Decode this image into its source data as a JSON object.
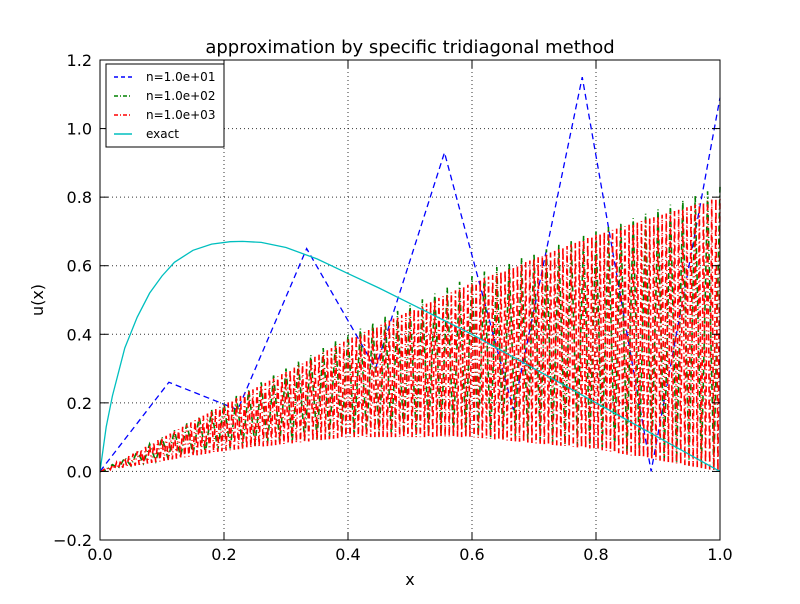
{
  "chart_data": {
    "type": "line",
    "title": "approximation by specific tridiagonal method",
    "xlabel": "x",
    "ylabel": "u(x)",
    "xlim": [
      0.0,
      1.0
    ],
    "ylim": [
      -0.2,
      1.2
    ],
    "xticks": [
      "0.0",
      "0.2",
      "0.4",
      "0.6",
      "0.8",
      "1.0"
    ],
    "yticks": [
      "−0.2",
      "0.0",
      "0.2",
      "0.4",
      "0.6",
      "0.8",
      "1.0",
      "1.2"
    ],
    "xtick_values": [
      0.0,
      0.2,
      0.4,
      0.6,
      0.8,
      1.0
    ],
    "ytick_values": [
      -0.2,
      0.0,
      0.2,
      0.4,
      0.6,
      0.8,
      1.0,
      1.2
    ],
    "grid": true,
    "legend_position": "top-left",
    "series": [
      {
        "name": "n=1.0e+01",
        "color": "#0000ff",
        "style": "dashed",
        "x": [
          0.0,
          0.1111,
          0.2222,
          0.3333,
          0.4444,
          0.5556,
          0.6667,
          0.7778,
          0.8889,
          1.0
        ],
        "y": [
          0.0,
          0.26,
          0.18,
          0.65,
          0.3,
          0.93,
          0.18,
          1.15,
          0.0,
          1.09
        ]
      },
      {
        "name": "n=1.0e+02",
        "color": "#008000",
        "style": "dash-dot",
        "x_start": 0.0,
        "x_end": 1.0,
        "upper": [
          0.0,
          0.2,
          0.4,
          0.57,
          0.7,
          0.83
        ],
        "lower": [
          0.0,
          0.065,
          0.105,
          0.105,
          0.07,
          0.0
        ]
      },
      {
        "name": "n=1.0e+03",
        "color": "#ff0000",
        "style": "dash-dot",
        "x_start": 0.0,
        "x_end": 1.0,
        "upper": [
          0.0,
          0.195,
          0.385,
          0.55,
          0.69,
          0.8
        ],
        "lower": [
          0.0,
          0.06,
          0.1,
          0.1,
          0.065,
          0.0
        ]
      },
      {
        "name": "exact",
        "color": "#00bfbf",
        "style": "solid",
        "x": [
          0.0,
          0.01,
          0.02,
          0.04,
          0.06,
          0.08,
          0.1,
          0.12,
          0.15,
          0.18,
          0.21,
          0.23,
          0.26,
          0.3,
          0.35,
          0.4,
          0.45,
          0.5,
          0.55,
          0.6,
          0.65,
          0.7,
          0.75,
          0.8,
          0.85,
          0.9,
          0.95,
          1.0
        ],
        "y": [
          0.0,
          0.13,
          0.22,
          0.36,
          0.45,
          0.52,
          0.57,
          0.61,
          0.645,
          0.663,
          0.67,
          0.671,
          0.668,
          0.653,
          0.62,
          0.577,
          0.535,
          0.49,
          0.445,
          0.4,
          0.35,
          0.3,
          0.25,
          0.2,
          0.15,
          0.1,
          0.05,
          0.0
        ]
      }
    ]
  }
}
